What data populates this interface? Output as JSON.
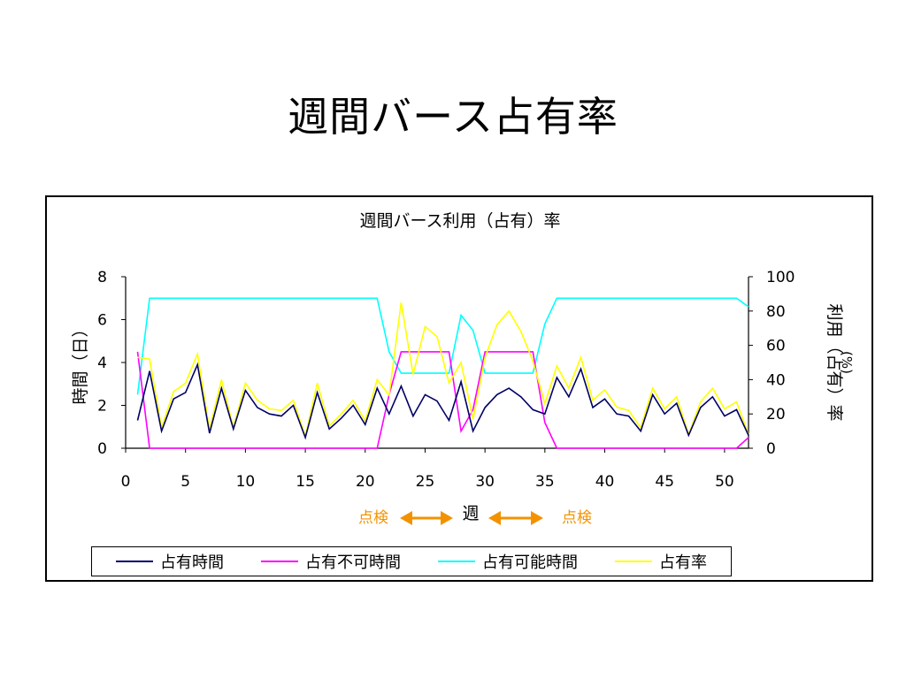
{
  "slide": {
    "title": "週間バース占有率"
  },
  "annotations": {
    "left": "点検",
    "center": "週",
    "right": "点検",
    "color": "#f39200"
  },
  "chart_data": {
    "type": "line",
    "title": "週間バース利用（占有）率",
    "xlabel": "週",
    "ylabel_left": "時間（日）",
    "ylabel_right": "利用（占有）率",
    "ylabel_right_unit": "(%)",
    "xlim": [
      0,
      52
    ],
    "ylim_left": [
      0,
      8
    ],
    "ylim_right": [
      0,
      100
    ],
    "x_ticks": [
      0,
      5,
      10,
      15,
      20,
      25,
      30,
      35,
      40,
      45,
      50
    ],
    "y_left_ticks": [
      0,
      2,
      4,
      6,
      8
    ],
    "y_right_ticks": [
      0,
      20,
      40,
      60,
      80,
      100
    ],
    "grid": false,
    "legend_position": "bottom",
    "x": [
      1,
      2,
      3,
      4,
      5,
      6,
      7,
      8,
      9,
      10,
      11,
      12,
      13,
      14,
      15,
      16,
      17,
      18,
      19,
      20,
      21,
      22,
      23,
      24,
      25,
      26,
      27,
      28,
      29,
      30,
      31,
      32,
      33,
      34,
      35,
      36,
      37,
      38,
      39,
      40,
      41,
      42,
      43,
      44,
      45,
      46,
      47,
      48,
      49,
      50,
      51,
      52
    ],
    "series": [
      {
        "name": "占有時間",
        "axis": "left",
        "color": "#000066",
        "values": [
          1.3,
          3.6,
          0.8,
          2.3,
          2.6,
          3.9,
          0.7,
          2.8,
          0.9,
          2.7,
          1.9,
          1.6,
          1.5,
          2.0,
          0.5,
          2.6,
          0.9,
          1.4,
          2.0,
          1.1,
          2.8,
          1.6,
          2.9,
          1.5,
          2.5,
          2.2,
          1.3,
          3.1,
          0.8,
          1.9,
          2.5,
          2.8,
          2.4,
          1.8,
          1.6,
          3.3,
          2.4,
          3.7,
          1.9,
          2.3,
          1.6,
          1.5,
          0.8,
          2.5,
          1.6,
          2.1,
          0.6,
          1.9,
          2.4,
          1.5,
          1.8,
          0.6
        ]
      },
      {
        "name": "占有不可時間",
        "axis": "left",
        "color": "#ff00ff",
        "values": [
          4.5,
          0,
          0,
          0,
          0,
          0,
          0,
          0,
          0,
          0,
          0,
          0,
          0,
          0,
          0,
          0,
          0,
          0,
          0,
          0,
          0,
          2.5,
          4.5,
          4.5,
          4.5,
          4.5,
          4.5,
          0.8,
          1.8,
          4.5,
          4.5,
          4.5,
          4.5,
          4.5,
          1.2,
          0,
          0,
          0,
          0,
          0,
          0,
          0,
          0,
          0,
          0,
          0,
          0,
          0,
          0,
          0,
          0,
          0.5
        ]
      },
      {
        "name": "占有可能時間",
        "axis": "left",
        "color": "#00ffff",
        "values": [
          2.5,
          7.0,
          7.0,
          7.0,
          7.0,
          7.0,
          7.0,
          7.0,
          7.0,
          7.0,
          7.0,
          7.0,
          7.0,
          7.0,
          7.0,
          7.0,
          7.0,
          7.0,
          7.0,
          7.0,
          7.0,
          4.5,
          3.5,
          3.5,
          3.5,
          3.5,
          3.5,
          6.2,
          5.5,
          3.5,
          3.5,
          3.5,
          3.5,
          3.5,
          5.8,
          7.0,
          7.0,
          7.0,
          7.0,
          7.0,
          7.0,
          7.0,
          7.0,
          7.0,
          7.0,
          7.0,
          7.0,
          7.0,
          7.0,
          7.0,
          7.0,
          6.6
        ]
      },
      {
        "name": "占有率",
        "axis": "right",
        "color": "#ffff00",
        "values": [
          53,
          52,
          12,
          33,
          38,
          55,
          11,
          40,
          12,
          38,
          28,
          23,
          22,
          28,
          7,
          38,
          13,
          20,
          28,
          16,
          40,
          31,
          85,
          43,
          71,
          65,
          38,
          50,
          17,
          53,
          72,
          80,
          68,
          51,
          26,
          48,
          35,
          53,
          28,
          34,
          24,
          22,
          12,
          35,
          23,
          30,
          8,
          27,
          35,
          23,
          27,
          8
        ]
      }
    ]
  }
}
